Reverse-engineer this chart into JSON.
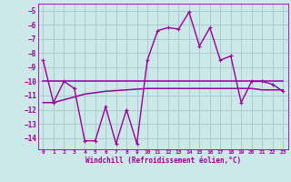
{
  "x": [
    0,
    1,
    2,
    3,
    4,
    5,
    6,
    7,
    8,
    9,
    10,
    11,
    12,
    13,
    14,
    15,
    16,
    17,
    18,
    19,
    20,
    21,
    22,
    23
  ],
  "y_main": [
    -8.5,
    -11.5,
    -10.0,
    -10.5,
    -14.2,
    -14.2,
    -11.8,
    -14.4,
    -12.0,
    -14.4,
    -8.5,
    -6.4,
    -6.2,
    -6.3,
    -5.1,
    -7.5,
    -6.2,
    -8.5,
    -8.2,
    -11.5,
    -10.0,
    -10.0,
    -10.2,
    -10.7
  ],
  "y_upper": [
    -10.0,
    -10.0,
    -10.0,
    -10.0,
    -10.0,
    -10.0,
    -10.0,
    -10.0,
    -10.0,
    -10.0,
    -10.0,
    -10.0,
    -10.0,
    -10.0,
    -10.0,
    -10.0,
    -10.0,
    -10.0,
    -10.0,
    -10.0,
    -10.0,
    -10.0,
    -10.0,
    -10.0
  ],
  "y_lower": [
    -11.5,
    -11.5,
    -11.3,
    -11.1,
    -10.9,
    -10.8,
    -10.7,
    -10.65,
    -10.6,
    -10.55,
    -10.5,
    -10.5,
    -10.5,
    -10.5,
    -10.5,
    -10.5,
    -10.5,
    -10.5,
    -10.5,
    -10.5,
    -10.5,
    -10.6,
    -10.6,
    -10.6
  ],
  "color_main": "#990099",
  "color_env": "#990099",
  "bg_color": "#cce8e8",
  "grid_color": "#aacccc",
  "xlabel": "Windchill (Refroidissement éolien,°C)",
  "ylim": [
    -14.8,
    -4.5
  ],
  "yticks": [
    -5,
    -6,
    -7,
    -8,
    -9,
    -10,
    -11,
    -12,
    -13,
    -14
  ],
  "xlim": [
    -0.5,
    23.5
  ],
  "xticks": [
    0,
    1,
    2,
    3,
    4,
    5,
    6,
    7,
    8,
    9,
    10,
    11,
    12,
    13,
    14,
    15,
    16,
    17,
    18,
    19,
    20,
    21,
    22,
    23
  ]
}
